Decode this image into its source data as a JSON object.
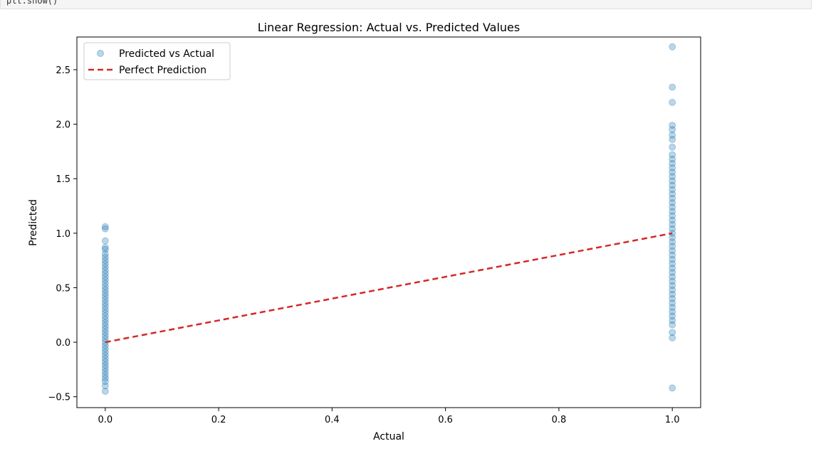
{
  "code_cell": {
    "text": "plt.show()"
  },
  "chart_data": {
    "type": "scatter",
    "title": "Linear Regression: Actual vs. Predicted Values",
    "xlabel": "Actual",
    "ylabel": "Predicted",
    "xlim": [
      -0.05,
      1.05
    ],
    "ylim": [
      -0.6,
      2.8
    ],
    "xticks": [
      0.0,
      0.2,
      0.4,
      0.6,
      0.8,
      1.0
    ],
    "xtick_labels": [
      "0.0",
      "0.2",
      "0.4",
      "0.6",
      "0.8",
      "1.0"
    ],
    "yticks": [
      -0.5,
      0.0,
      0.5,
      1.0,
      1.5,
      2.0,
      2.5
    ],
    "ytick_labels": [
      "−0.5",
      "0.0",
      "0.5",
      "1.0",
      "1.5",
      "2.0",
      "2.5"
    ],
    "grid": false,
    "legend_position": "top-left",
    "legend": [
      {
        "label": "Predicted vs Actual",
        "kind": "marker",
        "color": "#1f77b4"
      },
      {
        "label": "Perfect Prediction",
        "kind": "dashed-line",
        "color": "#d62728"
      }
    ],
    "series": [
      {
        "name": "Predicted vs Actual",
        "kind": "scatter",
        "color": "#1f77b4",
        "alpha": 0.3,
        "groups": [
          {
            "x": 0.0,
            "y": [
              1.06,
              1.04,
              0.93,
              0.87,
              0.85,
              0.81,
              0.78,
              0.75,
              0.72,
              0.69,
              0.66,
              0.63,
              0.6,
              0.57,
              0.54,
              0.51,
              0.48,
              0.45,
              0.42,
              0.39,
              0.36,
              0.33,
              0.3,
              0.27,
              0.24,
              0.21,
              0.18,
              0.15,
              0.12,
              0.09,
              0.06,
              0.03,
              0.0,
              -0.03,
              -0.06,
              -0.09,
              -0.12,
              -0.15,
              -0.18,
              -0.21,
              -0.24,
              -0.27,
              -0.3,
              -0.33,
              -0.36,
              -0.4,
              -0.45
            ]
          },
          {
            "x": 1.0,
            "y": [
              2.71,
              2.34,
              2.2,
              1.99,
              1.95,
              1.9,
              1.86,
              1.79,
              1.72,
              1.68,
              1.64,
              1.6,
              1.56,
              1.52,
              1.48,
              1.44,
              1.4,
              1.36,
              1.32,
              1.28,
              1.24,
              1.2,
              1.16,
              1.12,
              1.08,
              1.04,
              1.0,
              0.96,
              0.92,
              0.88,
              0.84,
              0.8,
              0.76,
              0.72,
              0.68,
              0.64,
              0.6,
              0.56,
              0.52,
              0.48,
              0.44,
              0.4,
              0.36,
              0.32,
              0.28,
              0.24,
              0.2,
              0.16,
              0.09,
              0.04,
              -0.42
            ]
          }
        ]
      },
      {
        "name": "Perfect Prediction",
        "kind": "line",
        "style": "dashed",
        "color": "#d62728",
        "x": [
          0.0,
          1.0
        ],
        "y": [
          0.0,
          1.0
        ]
      }
    ]
  }
}
